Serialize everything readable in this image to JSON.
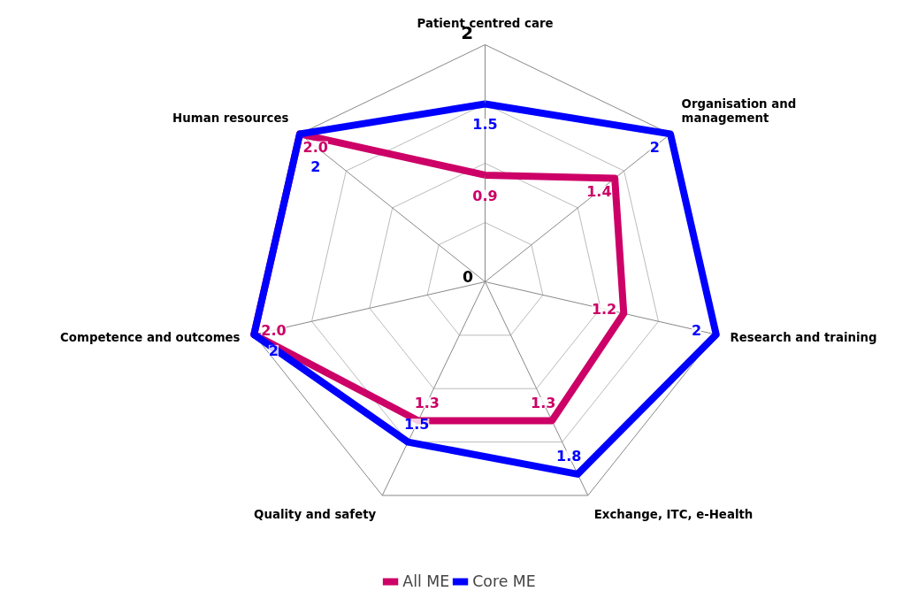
{
  "chart_data": {
    "type": "radar",
    "categories": [
      "Patient centred care",
      "Organisation and\nmanagement",
      "Research and training",
      "Exchange, ITC, e-Health",
      "Quality and safety",
      "Competence and outcomes",
      "Human resources"
    ],
    "ylim": [
      0,
      2
    ],
    "yticks": [
      0,
      2
    ],
    "marker": "none",
    "line_style": "solid",
    "legend": "bottom",
    "grid": true,
    "series": [
      {
        "name": "All ME",
        "color": "#cc0066",
        "values": [
          0.9,
          1.4,
          1.2,
          1.3,
          1.3,
          2.0,
          2.0
        ],
        "value_labels": [
          "0.9",
          "1.4",
          "1.2",
          "1.3",
          "1.3",
          "2.0",
          "2.0"
        ]
      },
      {
        "name": "Core ME",
        "color": "#0000ff",
        "values": [
          1.5,
          2,
          2,
          1.8,
          1.5,
          2,
          2
        ],
        "value_labels": [
          "1.5",
          "2",
          "2",
          "1.8",
          "1.5",
          "2",
          "2"
        ]
      }
    ]
  }
}
